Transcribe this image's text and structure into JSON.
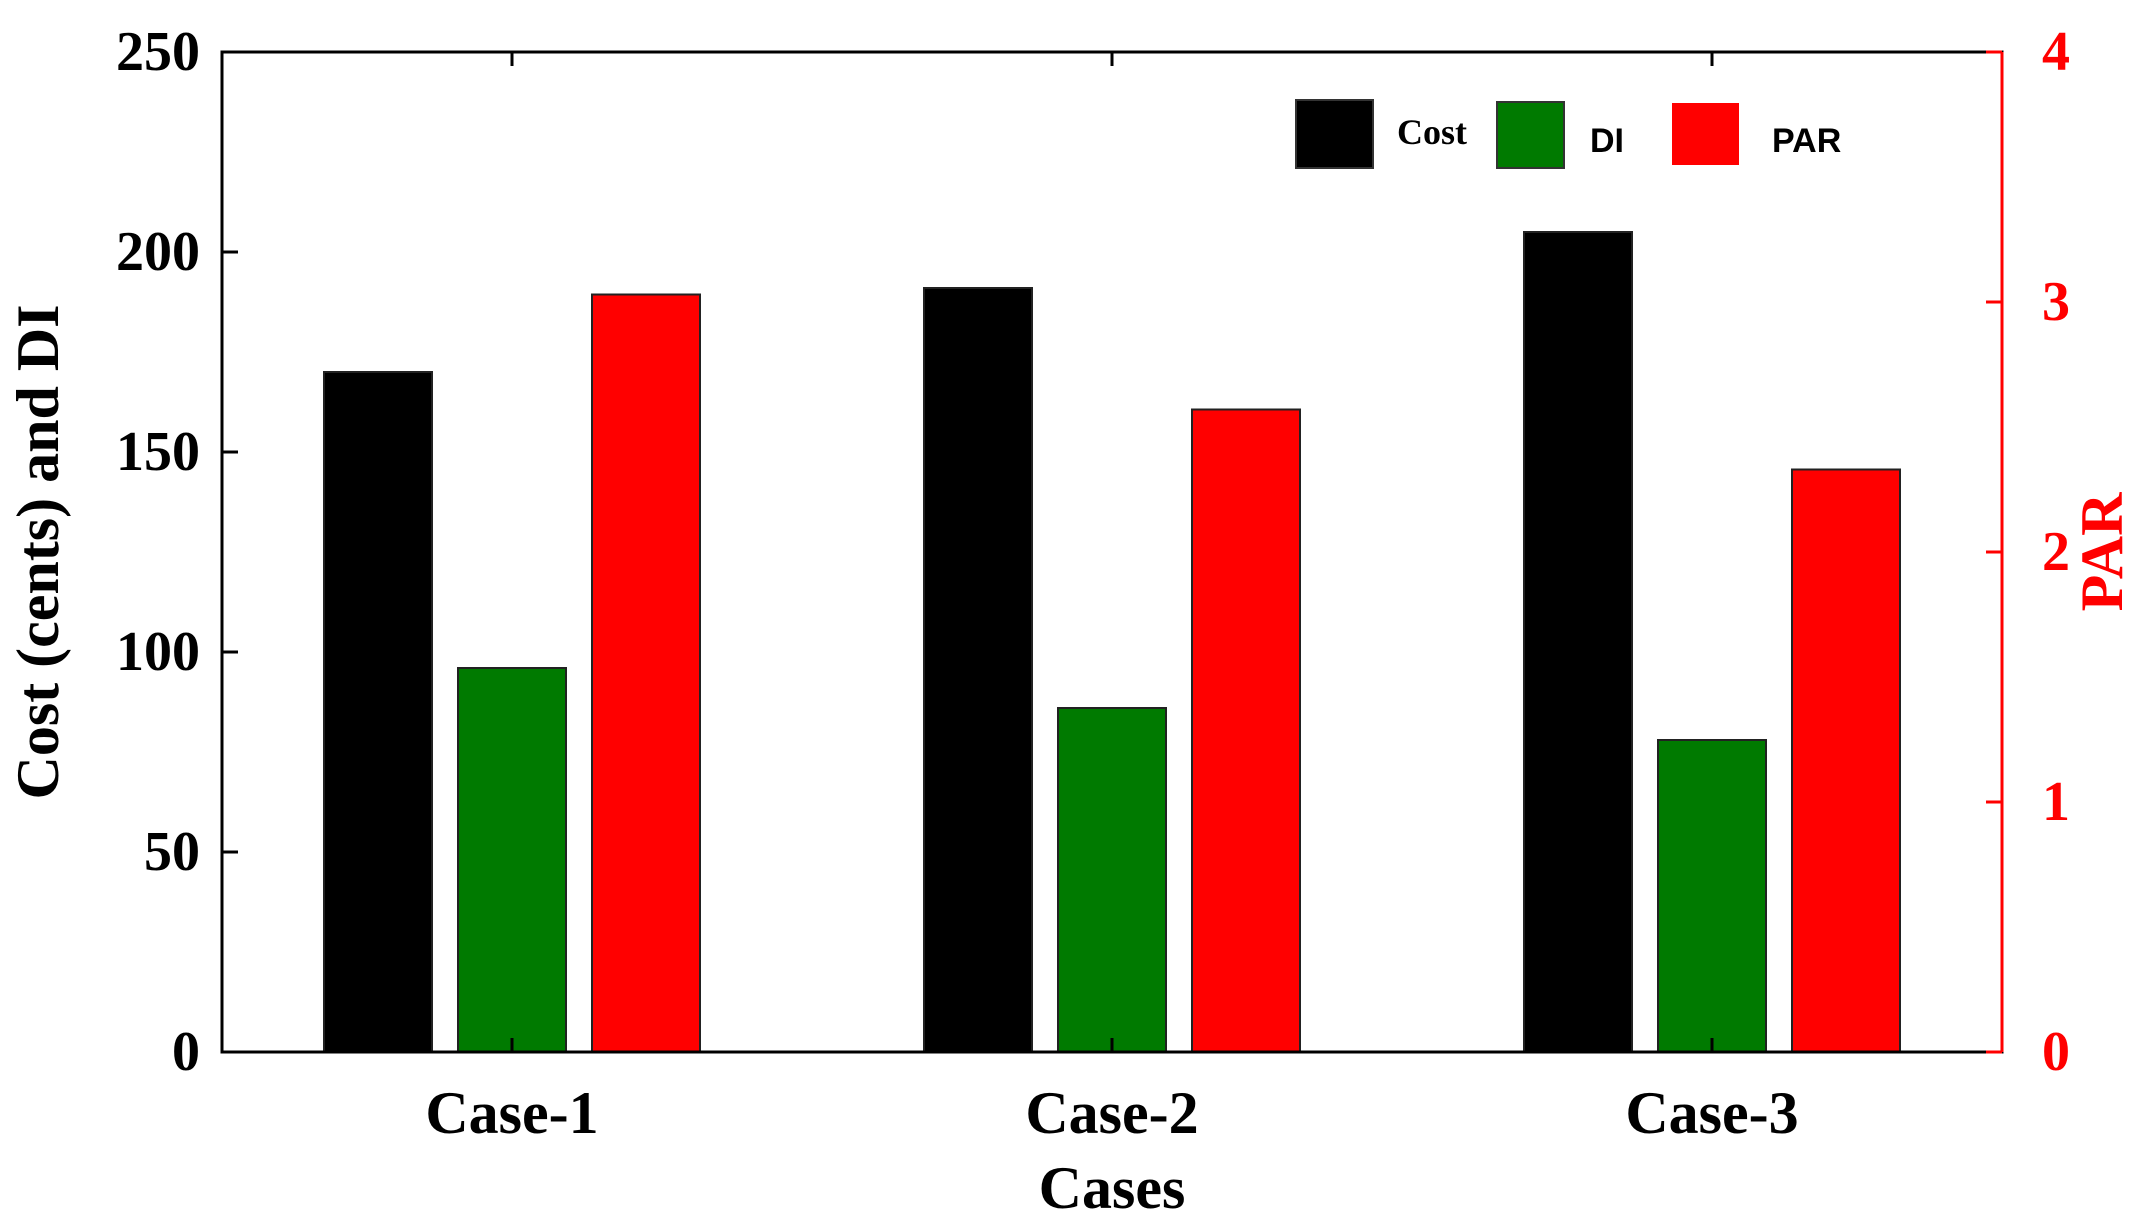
{
  "chart_data": {
    "type": "bar",
    "categories": [
      "Case-1",
      "Case-2",
      "Case-3"
    ],
    "series": [
      {
        "name": "Cost",
        "axis": "left",
        "color": "#000000",
        "values": [
          170,
          191,
          205
        ]
      },
      {
        "name": "DI",
        "axis": "left",
        "color": "#007A00",
        "values": [
          96,
          86,
          78
        ]
      },
      {
        "name": "PAR",
        "axis": "right",
        "color": "#FF0000",
        "values": [
          3.03,
          2.57,
          2.33
        ]
      }
    ],
    "xlabel": "Cases",
    "ylabel": "Cost (cents) and DI",
    "y2label": "PAR",
    "ylim": [
      0,
      250
    ],
    "y2lim": [
      0,
      4
    ],
    "yticks": [
      "0",
      "50",
      "100",
      "150",
      "200",
      "250"
    ],
    "y2ticks": [
      "0",
      "1",
      "2",
      "3",
      "4"
    ],
    "legend": [
      "Cost",
      "DI",
      "PAR"
    ],
    "legend_position": "top-right",
    "grid": false,
    "colors": {
      "right_axis": "#FF0000",
      "left_axis": "#000000"
    }
  }
}
